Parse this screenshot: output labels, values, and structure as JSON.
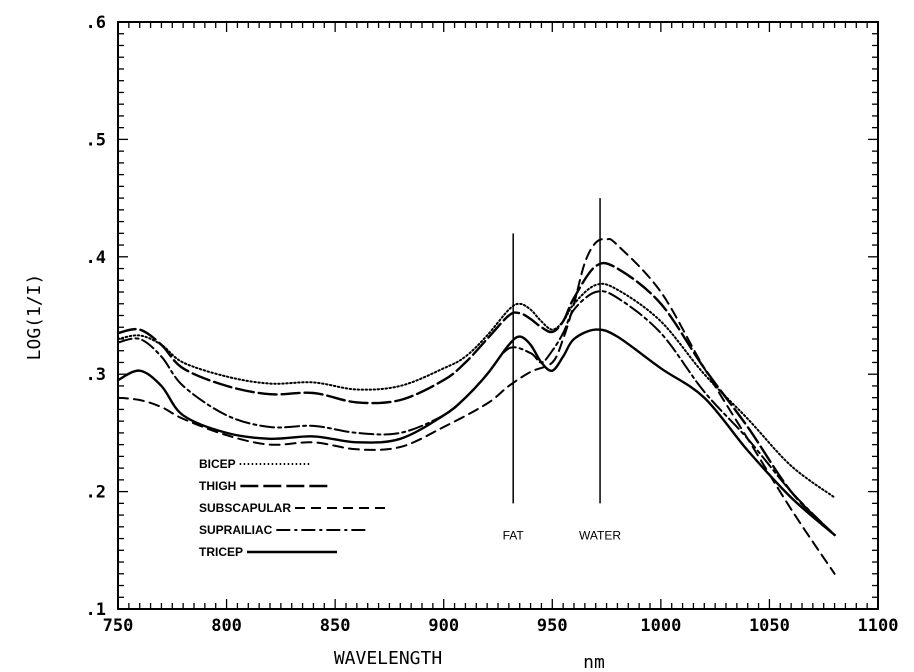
{
  "chart_data": {
    "type": "line",
    "title": "",
    "xlabel": "WAVELENGTH",
    "xunit": "nm",
    "ylabel": "LOG(1/I)",
    "xlim": [
      750,
      1100
    ],
    "ylim": [
      0.1,
      0.6
    ],
    "x_ticks": [
      750,
      800,
      850,
      900,
      950,
      1000,
      1050,
      1100
    ],
    "x_tick_labels": [
      "750",
      "800",
      "850",
      "900",
      "950",
      "1000",
      "1050",
      "1100"
    ],
    "y_ticks": [
      0.1,
      0.2,
      0.3,
      0.4,
      0.5,
      0.6
    ],
    "y_tick_labels": [
      ".1",
      ".2",
      ".3",
      ".4",
      ".5",
      ".6"
    ],
    "grid": false,
    "legend_position": "bottom-left",
    "series": [
      {
        "name": "BICEP",
        "dash": "dotted",
        "x": [
          750,
          760,
          770,
          780,
          800,
          820,
          840,
          860,
          880,
          900,
          910,
          920,
          930,
          935,
          940,
          945,
          950,
          955,
          960,
          970,
          980,
          1000,
          1020,
          1040,
          1060,
          1080
        ],
        "y": [
          0.33,
          0.333,
          0.325,
          0.31,
          0.298,
          0.292,
          0.293,
          0.287,
          0.29,
          0.305,
          0.315,
          0.333,
          0.355,
          0.36,
          0.355,
          0.345,
          0.338,
          0.345,
          0.36,
          0.376,
          0.372,
          0.345,
          0.3,
          0.262,
          0.222,
          0.195
        ]
      },
      {
        "name": "THIGH",
        "dash": "long-dash",
        "x": [
          750,
          760,
          770,
          780,
          800,
          820,
          840,
          860,
          880,
          900,
          910,
          920,
          930,
          935,
          940,
          945,
          950,
          955,
          960,
          970,
          980,
          1000,
          1020,
          1040,
          1060,
          1080
        ],
        "y": [
          0.335,
          0.338,
          0.325,
          0.305,
          0.29,
          0.283,
          0.284,
          0.276,
          0.278,
          0.295,
          0.31,
          0.33,
          0.35,
          0.352,
          0.347,
          0.34,
          0.336,
          0.345,
          0.365,
          0.392,
          0.39,
          0.36,
          0.305,
          0.255,
          0.2,
          0.163
        ]
      },
      {
        "name": "SUBSCAPULAR",
        "dash": "dashed",
        "x": [
          750,
          760,
          770,
          780,
          800,
          820,
          840,
          860,
          880,
          900,
          920,
          930,
          940,
          950,
          955,
          960,
          965,
          970,
          975,
          980,
          1000,
          1020,
          1040,
          1060,
          1080
        ],
        "y": [
          0.28,
          0.278,
          0.272,
          0.262,
          0.248,
          0.24,
          0.242,
          0.236,
          0.238,
          0.255,
          0.275,
          0.29,
          0.302,
          0.31,
          0.33,
          0.36,
          0.395,
          0.412,
          0.415,
          0.41,
          0.37,
          0.305,
          0.245,
          0.185,
          0.13
        ]
      },
      {
        "name": "SUPRAILIAC",
        "dash": "dash-dot",
        "x": [
          750,
          760,
          770,
          780,
          800,
          820,
          840,
          860,
          880,
          900,
          910,
          920,
          930,
          940,
          945,
          950,
          955,
          960,
          970,
          980,
          1000,
          1020,
          1040,
          1060,
          1080
        ],
        "y": [
          0.327,
          0.33,
          0.315,
          0.29,
          0.265,
          0.255,
          0.256,
          0.25,
          0.25,
          0.265,
          0.28,
          0.3,
          0.322,
          0.318,
          0.31,
          0.32,
          0.335,
          0.355,
          0.37,
          0.365,
          0.335,
          0.285,
          0.245,
          0.2,
          0.163
        ]
      },
      {
        "name": "TRICEP",
        "dash": "solid",
        "x": [
          750,
          760,
          770,
          780,
          800,
          820,
          840,
          860,
          880,
          900,
          910,
          920,
          930,
          935,
          940,
          945,
          950,
          955,
          960,
          970,
          980,
          1000,
          1020,
          1040,
          1060,
          1080
        ],
        "y": [
          0.295,
          0.303,
          0.29,
          0.265,
          0.25,
          0.245,
          0.247,
          0.242,
          0.245,
          0.265,
          0.28,
          0.3,
          0.325,
          0.332,
          0.325,
          0.31,
          0.303,
          0.315,
          0.33,
          0.338,
          0.332,
          0.305,
          0.28,
          0.235,
          0.195,
          0.163
        ]
      }
    ],
    "annotations": [
      {
        "text": "FAT",
        "x": 932,
        "line_from": 0.19,
        "line_to": 0.42
      },
      {
        "text": "WATER",
        "x": 972,
        "line_from": 0.19,
        "line_to": 0.45
      }
    ]
  }
}
